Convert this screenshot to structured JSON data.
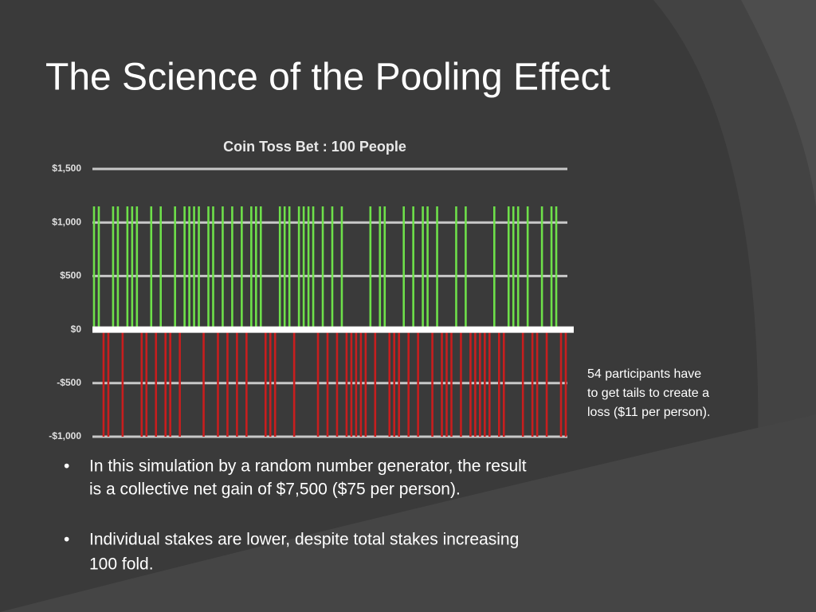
{
  "slide": {
    "title": "The Science of the Pooling Effect",
    "note": [
      "54 participants have",
      "to get tails to create a",
      "loss ($11 per person)."
    ],
    "bullets": [
      {
        "marker": "•",
        "lines": [
          "In this simulation by a random number generator, the result",
          "is a collective net gain of $7,500 ($75 per person)."
        ]
      },
      {
        "marker": "•",
        "lines": [
          "Individual stakes are lower, despite total stakes increasing",
          "100 fold."
        ]
      }
    ]
  },
  "chart_data": {
    "type": "bar",
    "title": "Coin Toss Bet : 100 People",
    "values": [
      1150,
      1150,
      -1000,
      -1000,
      1150,
      1150,
      -1000,
      1150,
      1150,
      1150,
      -1000,
      -1000,
      1150,
      -1000,
      1150,
      -1000,
      -1000,
      1150,
      -1000,
      1150,
      1150,
      1150,
      1150,
      -1000,
      1150,
      1150,
      -1000,
      1150,
      -1000,
      1150,
      -1000,
      1150,
      -1000,
      1150,
      1150,
      1150,
      -1000,
      -1000,
      -1000,
      1150,
      1150,
      1150,
      -1000,
      1150,
      1150,
      1150,
      1150,
      -1000,
      1150,
      -1000,
      1150,
      -1000,
      1150,
      -1000,
      -1000,
      -1000,
      -1000,
      -1000,
      1150,
      -1000,
      1150,
      1150,
      -1000,
      -1000,
      -1000,
      1150,
      -1000,
      1150,
      -1000,
      1150,
      1150,
      -1000,
      1150,
      -1000,
      -1000,
      -1000,
      1150,
      -1000,
      1150,
      -1000,
      -1000,
      -1000,
      -1000,
      -1000,
      1150,
      -1000,
      -1000,
      1150,
      1150,
      1150,
      -1000,
      1150,
      -1000,
      -1000,
      1150,
      -1000,
      1150,
      1150,
      -1000,
      -1000
    ],
    "color_positive": "#6ee04a",
    "color_negative": "#c81e1e",
    "ylim": [
      -1000,
      1500
    ],
    "yticks": [
      {
        "value": -1000,
        "label": "-$1,000"
      },
      {
        "value": -500,
        "label": "-$500"
      },
      {
        "value": 0,
        "label": "$0"
      },
      {
        "value": 500,
        "label": "$500"
      },
      {
        "value": 1000,
        "label": "$1,000"
      },
      {
        "value": 1500,
        "label": "$1,500"
      }
    ],
    "grid": true
  }
}
